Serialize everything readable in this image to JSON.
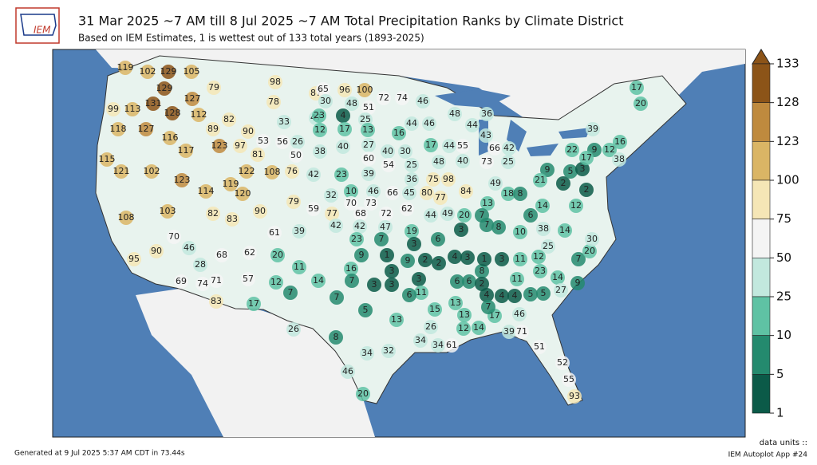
{
  "header": {
    "logo": "IEM",
    "title": "31 Mar 2025 ~7 AM till 8 Jul 2025 ~7 AM Total Precipitation Ranks by Climate District",
    "subtitle": "Based on IEM Estimates, 1 is wettest out of 133 total years (1893-2025)"
  },
  "colorbar": {
    "ticks": [
      133,
      128,
      123,
      100,
      75,
      50,
      25,
      10,
      5,
      1
    ],
    "colors": [
      "#8c5418",
      "#bf8a3e",
      "#dab565",
      "#f5e6b6",
      "#f4f4f4",
      "#c2e8de",
      "#5fc2a4",
      "#248a6e",
      "#0b5a48"
    ]
  },
  "districts": {
    "values": [
      119,
      102,
      129,
      105,
      129,
      131,
      127,
      99,
      113,
      128,
      112,
      118,
      127,
      116,
      89,
      82,
      117,
      123,
      115,
      121,
      102,
      123,
      114,
      119,
      108,
      103,
      70,
      95,
      90,
      79,
      98,
      87,
      78,
      33,
      47,
      90,
      53,
      56,
      26,
      97,
      81,
      50,
      122,
      108,
      76,
      120,
      82,
      83,
      90,
      79,
      61,
      39,
      59,
      46,
      28,
      68,
      62,
      20,
      11,
      69,
      74,
      71,
      57,
      12,
      7,
      83,
      17,
      14,
      26,
      65,
      96,
      100,
      30,
      48,
      51,
      72,
      74,
      46,
      23,
      4,
      25,
      12,
      17,
      13,
      16,
      38,
      40,
      27,
      40,
      30,
      60,
      42,
      23,
      39,
      54,
      25,
      36,
      75,
      98,
      84,
      32,
      10,
      46,
      66,
      45,
      80,
      77,
      70,
      73,
      77,
      68,
      72,
      62,
      44,
      49,
      20,
      42,
      42,
      47,
      19,
      23,
      7,
      6,
      3,
      16,
      9,
      1,
      9,
      2,
      2,
      7,
      3,
      3,
      3,
      3,
      11,
      6,
      5,
      7,
      8,
      13,
      34,
      32,
      46,
      20,
      13,
      15,
      26,
      34,
      34,
      61,
      12,
      14,
      39,
      71,
      51,
      52,
      55,
      93,
      8,
      6,
      6,
      2,
      17,
      4,
      4,
      5,
      5,
      11,
      23,
      14,
      27,
      46,
      13,
      4,
      7,
      4,
      3,
      1,
      3,
      11,
      12,
      25,
      7,
      9,
      20,
      30,
      3,
      7,
      8,
      10,
      38,
      14,
      12,
      22,
      9,
      12,
      16,
      38,
      39,
      17,
      20,
      66,
      42,
      73,
      25,
      9,
      21,
      49,
      18,
      8,
      13,
      7,
      6,
      14,
      2,
      2,
      5,
      3,
      17,
      43,
      44,
      46,
      48,
      36,
      55,
      44,
      17,
      40,
      48,
      44
    ]
  },
  "footer": {
    "generated": "Generated at 9 Jul 2025 5:37 AM CDT in 73.44s",
    "units": "data units ::",
    "app": "IEM Autoplot App #24"
  }
}
